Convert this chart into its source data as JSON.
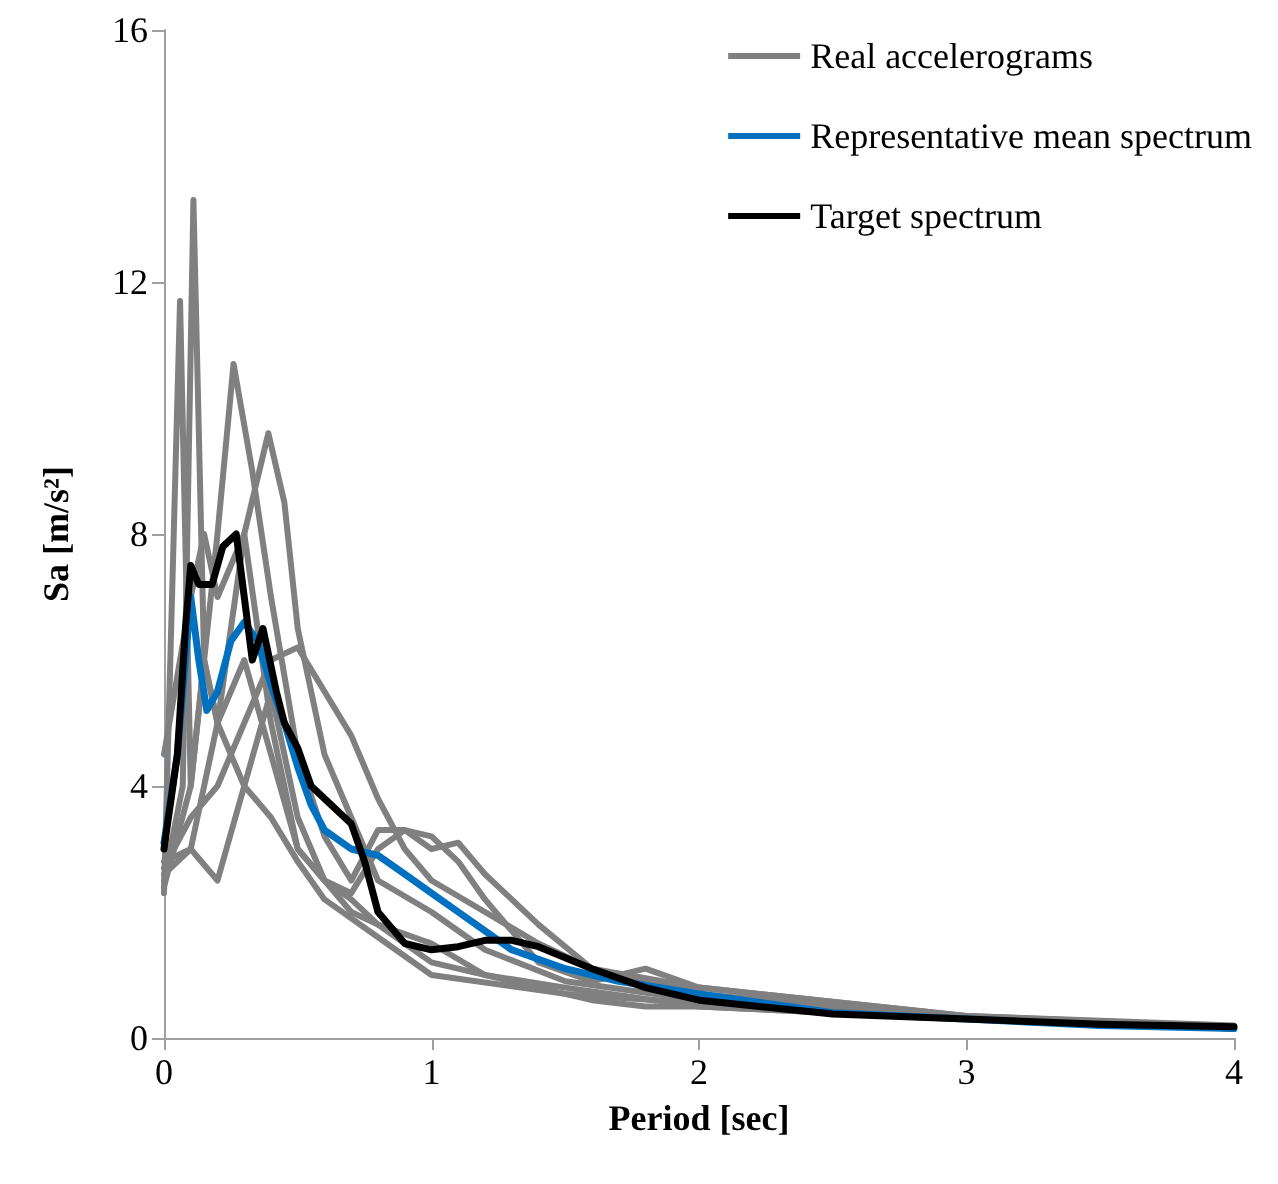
{
  "chart_data": {
    "type": "line",
    "xlabel": "Period [sec]",
    "ylabel": "Sa [m/s²]",
    "xlim": [
      0,
      4
    ],
    "xticks": [
      0,
      1,
      2,
      3,
      4
    ],
    "ylim": [
      0,
      16
    ],
    "yticks": [
      0,
      4,
      8,
      12,
      16
    ],
    "grid": false,
    "legend": "top right",
    "marker": "none",
    "line_style": "solid",
    "series": [
      {
        "name": "Real accelerograms",
        "color": "#808080",
        "x": [
          0,
          0.07,
          0.11,
          0.15,
          0.2,
          0.3,
          0.4,
          0.5,
          0.6,
          0.8,
          1.0,
          1.5,
          2.0,
          3,
          4
        ],
        "values": [
          2.5,
          4,
          13.3,
          6,
          5,
          4,
          3.5,
          2.8,
          2.2,
          1.6,
          1.0,
          0.7,
          0.55,
          0.3,
          0.15
        ]
      },
      {
        "color": "#808080",
        "x": [
          0,
          0.06,
          0.1,
          0.15,
          0.2,
          0.3,
          0.4,
          0.5,
          0.6,
          0.7,
          0.8,
          1.0,
          1.2,
          1.5,
          2,
          3,
          4
        ],
        "values": [
          2.3,
          11.7,
          4,
          6,
          5,
          6,
          4.5,
          3,
          2.5,
          2.0,
          1.8,
          1.5,
          1.0,
          0.8,
          0.5,
          0.3,
          0.15
        ]
      },
      {
        "color": "#808080",
        "x": [
          0,
          0.1,
          0.2,
          0.26,
          0.33,
          0.4,
          0.5,
          0.6,
          0.7,
          0.8,
          0.9,
          1.0,
          1.1,
          1.2,
          1.4,
          1.6,
          2.0,
          3,
          4
        ],
        "values": [
          2.4,
          4,
          8,
          10.7,
          9,
          7,
          4.5,
          3.2,
          2.5,
          3.3,
          3.3,
          3.0,
          3.1,
          2.6,
          1.8,
          1.1,
          0.7,
          0.3,
          0.18
        ]
      },
      {
        "color": "#808080",
        "x": [
          0,
          0.1,
          0.2,
          0.3,
          0.39,
          0.45,
          0.5,
          0.6,
          0.7,
          0.8,
          1.0,
          1.2,
          1.5,
          2.0,
          3,
          4
        ],
        "values": [
          2.6,
          3,
          5,
          8,
          9.6,
          8.5,
          6.5,
          4.5,
          3.5,
          2.5,
          2.0,
          1.4,
          0.9,
          0.6,
          0.3,
          0.15
        ]
      },
      {
        "color": "#808080",
        "x": [
          0,
          0.1,
          0.2,
          0.3,
          0.4,
          0.5,
          0.6,
          0.7,
          0.8,
          0.9,
          1.0,
          1.2,
          1.4,
          1.6,
          2.0,
          3,
          4
        ],
        "values": [
          2.7,
          3.5,
          4,
          5,
          6,
          6.2,
          5.5,
          4.8,
          3.8,
          3.0,
          2.5,
          2.0,
          1.5,
          1.1,
          0.8,
          0.35,
          0.2
        ]
      },
      {
        "color": "#808080",
        "x": [
          0,
          0.1,
          0.15,
          0.2,
          0.3,
          0.4,
          0.5,
          0.6,
          0.7,
          0.8,
          0.9,
          1.0,
          1.3,
          1.6,
          1.8,
          2.0,
          3,
          4
        ],
        "values": [
          4.5,
          7,
          8,
          7,
          8,
          5,
          3,
          2.5,
          2.2,
          1.8,
          1.5,
          1.2,
          0.9,
          0.6,
          0.5,
          0.5,
          0.3,
          0.15
        ]
      },
      {
        "color": "#808080",
        "x": [
          0,
          0.1,
          0.2,
          0.3,
          0.4,
          0.5,
          0.6,
          0.7,
          0.8,
          0.9,
          1.0,
          1.1,
          1.2,
          1.4,
          1.6,
          1.8,
          2.0,
          3,
          4
        ],
        "values": [
          2.8,
          3,
          2.5,
          4,
          5.5,
          3.5,
          2.5,
          2.3,
          3.0,
          3.3,
          3.2,
          2.8,
          2.2,
          1.2,
          0.9,
          1.1,
          0.8,
          0.35,
          0.18
        ]
      },
      {
        "name": "Representative mean spectrum",
        "color": "#0070c0",
        "x": [
          0,
          0.05,
          0.1,
          0.13,
          0.16,
          0.2,
          0.25,
          0.3,
          0.35,
          0.4,
          0.45,
          0.5,
          0.55,
          0.6,
          0.7,
          0.8,
          0.9,
          1.0,
          1.1,
          1.2,
          1.3,
          1.5,
          1.7,
          2.0,
          2.5,
          3.0,
          3.5,
          4.0
        ],
        "values": [
          3.1,
          4.5,
          7.0,
          6.0,
          5.2,
          5.5,
          6.3,
          6.6,
          6.3,
          5.6,
          5.0,
          4.3,
          3.7,
          3.3,
          3.0,
          2.9,
          2.6,
          2.3,
          2.0,
          1.7,
          1.4,
          1.1,
          0.9,
          0.7,
          0.4,
          0.3,
          0.2,
          0.15
        ]
      },
      {
        "name": "Target spectrum",
        "color": "#000000",
        "x": [
          0,
          0.05,
          0.08,
          0.1,
          0.13,
          0.18,
          0.22,
          0.27,
          0.3,
          0.33,
          0.37,
          0.42,
          0.45,
          0.5,
          0.55,
          0.6,
          0.7,
          0.75,
          0.8,
          0.9,
          1.0,
          1.1,
          1.2,
          1.3,
          1.4,
          1.6,
          1.8,
          2.0,
          2.5,
          3.0,
          3.5,
          4.0
        ],
        "values": [
          3.0,
          4.5,
          6.5,
          7.5,
          7.2,
          7.2,
          7.8,
          8.0,
          7.0,
          6.0,
          6.5,
          5.5,
          5.0,
          4.6,
          4.0,
          3.8,
          3.4,
          2.8,
          2.0,
          1.5,
          1.4,
          1.45,
          1.55,
          1.55,
          1.45,
          1.1,
          0.8,
          0.6,
          0.38,
          0.3,
          0.22,
          0.18
        ]
      }
    ]
  }
}
